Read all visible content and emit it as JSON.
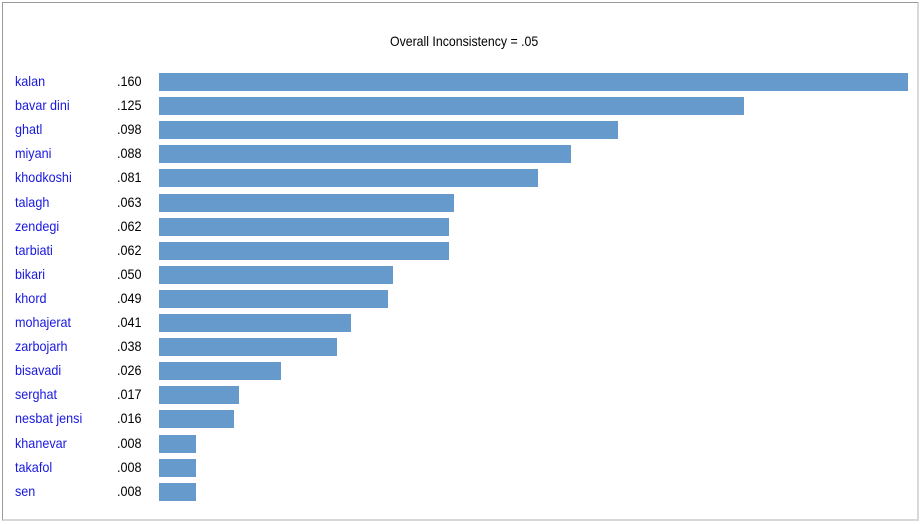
{
  "chart_data": {
    "type": "bar",
    "orientation": "horizontal",
    "title": "Overall Inconsistency = .05",
    "categories": [
      "kalan",
      "bavar dini",
      "ghatl",
      "miyani",
      "khodkoshi",
      "talagh",
      "zendegi",
      "tarbiati",
      "bikari",
      "khord",
      "mohajerat",
      "zarbojarh",
      "bisavadi",
      "serghat",
      "nesbat jensi",
      "khanevar",
      "takafol",
      "sen"
    ],
    "values": [
      0.16,
      0.125,
      0.098,
      0.088,
      0.081,
      0.063,
      0.062,
      0.062,
      0.05,
      0.049,
      0.041,
      0.038,
      0.026,
      0.017,
      0.016,
      0.008,
      0.008,
      0.008
    ],
    "value_labels": [
      ".160",
      ".125",
      ".098",
      ".088",
      ".081",
      ".063",
      ".062",
      ".062",
      ".050",
      ".049",
      ".041",
      ".038",
      ".026",
      ".017",
      ".016",
      ".008",
      ".008",
      ".008"
    ],
    "xlim": [
      0,
      0.16
    ],
    "bar_color": "#6699cc",
    "label_color": "#1818e0",
    "grid": false,
    "legend": false
  }
}
